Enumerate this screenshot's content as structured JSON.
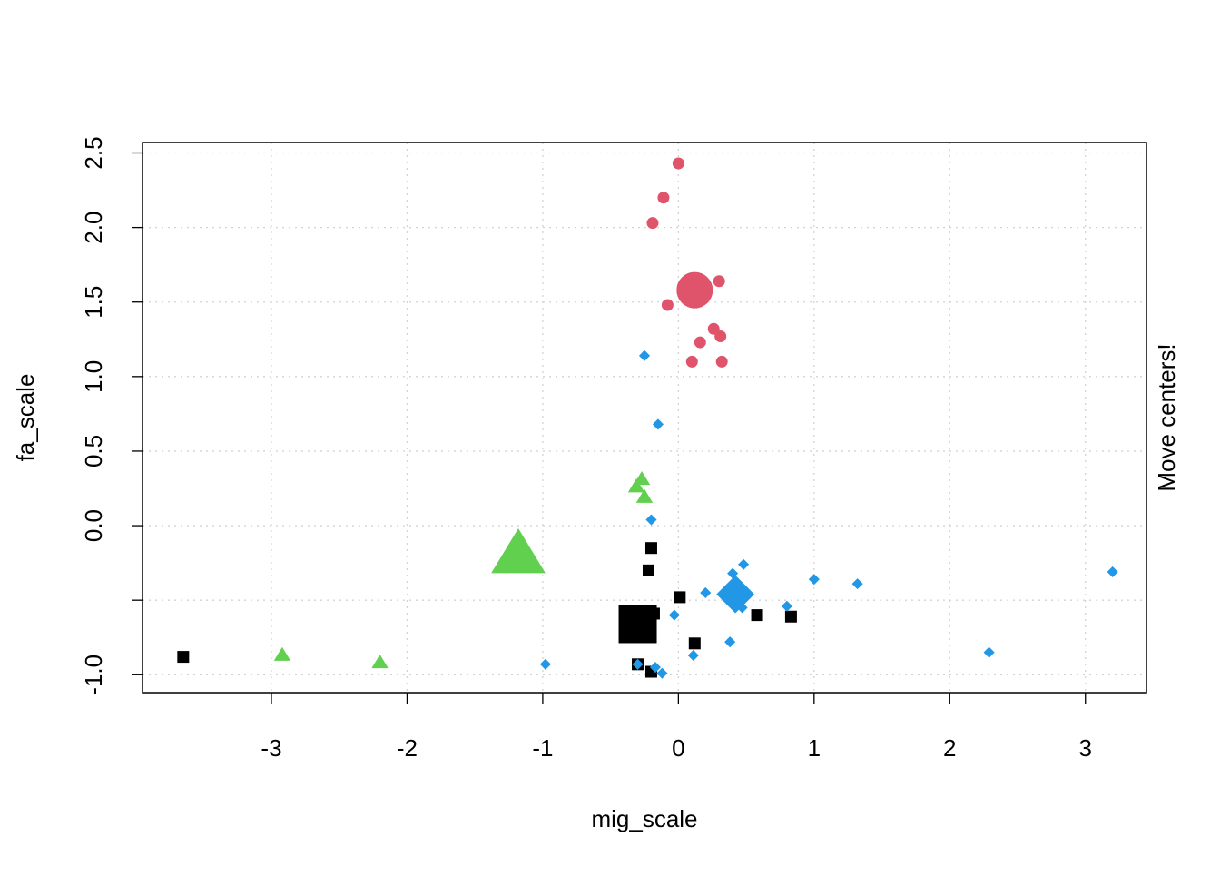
{
  "chart_data": {
    "type": "scatter",
    "xlabel": "mig_scale",
    "ylabel": "fa_scale",
    "right_margin_text": "Move centers!",
    "xlim": [
      -3.95,
      3.45
    ],
    "ylim": [
      -1.12,
      2.57
    ],
    "x_ticks": [
      -3,
      -2,
      -1,
      0,
      1,
      2,
      3
    ],
    "x_tick_labels": [
      "-3",
      "-2",
      "-1",
      "0",
      "1",
      "2",
      "3"
    ],
    "y_ticks": [
      -1.0,
      -0.5,
      0.0,
      0.5,
      1.0,
      1.5,
      2.0,
      2.5
    ],
    "y_tick_labels": [
      "-1.0",
      "",
      "0.0",
      "0.5",
      "1.0",
      "1.5",
      "2.0",
      "2.5"
    ],
    "grid": true,
    "series": [
      {
        "color": "#000000",
        "marker": "square",
        "points": [
          [
            -3.65,
            -0.88
          ],
          [
            -0.2,
            -0.15
          ],
          [
            -0.22,
            -0.3
          ],
          [
            0.01,
            -0.48
          ],
          [
            0.58,
            -0.6
          ],
          [
            0.83,
            -0.61
          ],
          [
            0.12,
            -0.79
          ],
          [
            -0.18,
            -0.59
          ],
          [
            -0.3,
            -0.93
          ],
          [
            -0.2,
            -0.98
          ],
          [
            -0.25,
            -0.57
          ]
        ],
        "center": [
          -0.3,
          -0.66
        ]
      },
      {
        "color": "#DF536B",
        "marker": "circle",
        "points": [
          [
            0.0,
            2.43
          ],
          [
            -0.11,
            2.2
          ],
          [
            -0.19,
            2.03
          ],
          [
            0.3,
            1.64
          ],
          [
            -0.08,
            1.48
          ],
          [
            0.26,
            1.32
          ],
          [
            0.31,
            1.27
          ],
          [
            0.16,
            1.23
          ],
          [
            0.1,
            1.1
          ],
          [
            0.32,
            1.1
          ]
        ],
        "center": [
          0.12,
          1.58
        ]
      },
      {
        "color": "#61D04F",
        "marker": "triangle",
        "points": [
          [
            -0.27,
            0.31
          ],
          [
            -0.31,
            0.26
          ],
          [
            -0.25,
            0.19
          ],
          [
            -2.92,
            -0.87
          ],
          [
            -2.2,
            -0.92
          ]
        ],
        "center": [
          -1.18,
          -0.2
        ]
      },
      {
        "color": "#2297E6",
        "marker": "diamond",
        "points": [
          [
            -0.25,
            1.14
          ],
          [
            -0.15,
            0.68
          ],
          [
            -0.2,
            0.04
          ],
          [
            0.48,
            -0.26
          ],
          [
            0.4,
            -0.32
          ],
          [
            1.0,
            -0.36
          ],
          [
            1.32,
            -0.39
          ],
          [
            3.2,
            -0.31
          ],
          [
            0.2,
            -0.45
          ],
          [
            0.8,
            -0.54
          ],
          [
            0.47,
            -0.55
          ],
          [
            -0.03,
            -0.6
          ],
          [
            0.38,
            -0.78
          ],
          [
            0.11,
            -0.87
          ],
          [
            2.29,
            -0.85
          ],
          [
            -0.98,
            -0.93
          ],
          [
            -0.3,
            -0.93
          ],
          [
            -0.17,
            -0.95
          ],
          [
            -0.12,
            -0.99
          ]
        ],
        "center": [
          0.42,
          -0.46
        ]
      }
    ]
  }
}
